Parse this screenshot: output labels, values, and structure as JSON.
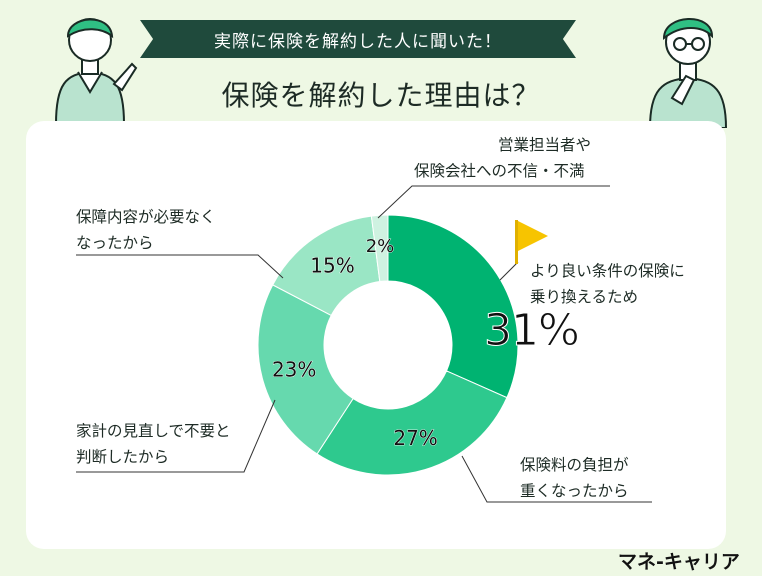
{
  "banner": "実際に保険を解約した人に聞いた！",
  "title": "保険を解約した理由は？",
  "brand": "マネ-キャリア",
  "chart_data": {
    "type": "pie",
    "categories": [
      "より良い条件の保険に乗り換えるため",
      "保険料の負担が重くなったから",
      "家計の見直しで不要と判断したから",
      "保障内容が必要なくなったから",
      "営業担当者や保険会社への不信・不満"
    ],
    "values": [
      31,
      27,
      23,
      15,
      2
    ],
    "value_labels": [
      "31%",
      "27%",
      "23%",
      "15%",
      "2%"
    ],
    "colors": [
      "#00b371",
      "#2ec98e",
      "#66d9ae",
      "#9ae6c5",
      "#cff2e1"
    ],
    "donut": true
  },
  "labels": {
    "switch": [
      "より良い条件の保険に",
      "乗り換えるため"
    ],
    "burden": [
      "保険料の負担が",
      "重くなったから"
    ],
    "household": [
      "家計の見直しで不要と",
      "判断したから"
    ],
    "coverage": [
      "保障内容が必要なく",
      "なったから"
    ],
    "distrust": [
      "営業担当者や",
      "保険会社への不信・不満"
    ]
  },
  "colors": {
    "banner": "#1f4a3c",
    "background": "#eef8e4",
    "flag": "#f7c400"
  }
}
